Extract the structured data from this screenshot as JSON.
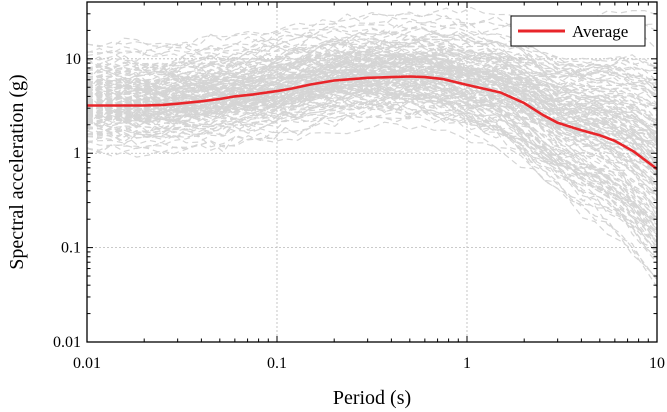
{
  "chart_data": {
    "type": "line",
    "xlabel": "Period (s)",
    "ylabel": "Spectral acceleration (g)",
    "x_scale": "log",
    "y_scale": "log",
    "xlim": [
      0.01,
      10
    ],
    "ylim": [
      0.01,
      40
    ],
    "x_ticks": [
      0.01,
      0.1,
      1,
      10
    ],
    "x_tick_labels": [
      "0.01",
      "0.1",
      "1",
      "10"
    ],
    "y_ticks": [
      0.01,
      0.1,
      1,
      10
    ],
    "y_tick_labels": [
      "0.01",
      "0.1",
      "1",
      "10"
    ],
    "grid": true,
    "legend_position": "top-right",
    "series": [
      {
        "name": "Average",
        "color": "#e8252a",
        "style": "solid",
        "x": [
          0.01,
          0.015,
          0.02,
          0.025,
          0.03,
          0.04,
          0.05,
          0.06,
          0.075,
          0.1,
          0.12,
          0.15,
          0.2,
          0.25,
          0.3,
          0.4,
          0.5,
          0.6,
          0.75,
          1.0,
          1.5,
          2.0,
          2.5,
          3.0,
          4.0,
          5.0,
          6.0,
          7.5,
          10.0
        ],
        "y": [
          3.2,
          3.2,
          3.2,
          3.25,
          3.35,
          3.55,
          3.75,
          4.0,
          4.2,
          4.55,
          4.85,
          5.35,
          5.9,
          6.1,
          6.3,
          6.4,
          6.5,
          6.4,
          6.1,
          5.3,
          4.4,
          3.4,
          2.55,
          2.1,
          1.75,
          1.55,
          1.35,
          1.05,
          0.68
        ]
      }
    ],
    "background_series_note_color": "#d5d5d5"
  }
}
